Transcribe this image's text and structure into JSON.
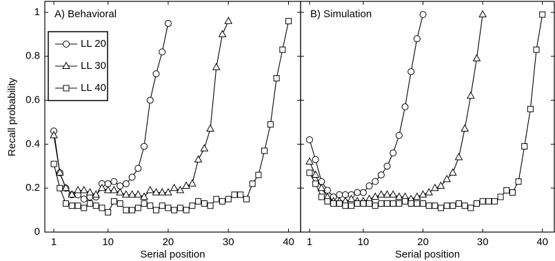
{
  "chart_data": [
    {
      "type": "line",
      "title": "A) Behavioral",
      "xlabel": "Serial position",
      "ylabel": "Recall probability",
      "xlim": [
        -0.5,
        42
      ],
      "ylim": [
        0,
        1.05
      ],
      "xticks": [
        1,
        10,
        20,
        30,
        40
      ],
      "yticks": [
        0,
        0.2,
        0.4,
        0.6,
        0.8,
        1
      ],
      "legend": "upper left",
      "color": "#000000",
      "series": [
        {
          "name": "LL 20",
          "marker": "circle",
          "x": [
            1,
            2,
            3,
            4,
            5,
            6,
            7,
            8,
            9,
            10,
            11,
            12,
            13,
            14,
            15,
            16,
            17,
            18,
            19,
            20
          ],
          "values": [
            0.46,
            0.27,
            0.2,
            0.17,
            0.17,
            0.15,
            0.16,
            0.16,
            0.22,
            0.22,
            0.23,
            0.21,
            0.22,
            0.25,
            0.29,
            0.39,
            0.6,
            0.72,
            0.82,
            0.95
          ]
        },
        {
          "name": "LL 30",
          "marker": "triangle",
          "x": [
            1,
            2,
            3,
            4,
            5,
            6,
            7,
            8,
            9,
            10,
            11,
            12,
            13,
            14,
            15,
            16,
            17,
            18,
            19,
            20,
            21,
            22,
            23,
            24,
            25,
            26,
            27,
            28,
            29,
            30
          ],
          "values": [
            0.44,
            0.27,
            0.2,
            0.17,
            0.19,
            0.19,
            0.18,
            0.17,
            0.2,
            0.19,
            0.19,
            0.18,
            0.17,
            0.17,
            0.17,
            0.16,
            0.19,
            0.18,
            0.18,
            0.18,
            0.2,
            0.19,
            0.21,
            0.22,
            0.33,
            0.38,
            0.47,
            0.75,
            0.9,
            0.96
          ]
        },
        {
          "name": "LL 40",
          "marker": "square",
          "x": [
            1,
            2,
            3,
            4,
            5,
            6,
            7,
            8,
            9,
            10,
            11,
            12,
            13,
            14,
            15,
            16,
            17,
            18,
            19,
            20,
            21,
            22,
            23,
            24,
            25,
            26,
            27,
            28,
            29,
            30,
            31,
            32,
            33,
            34,
            35,
            36,
            37,
            38,
            39,
            40
          ],
          "values": [
            0.31,
            0.2,
            0.13,
            0.12,
            0.12,
            0.11,
            0.13,
            0.12,
            0.11,
            0.09,
            0.14,
            0.13,
            0.1,
            0.1,
            0.11,
            0.13,
            0.12,
            0.1,
            0.12,
            0.11,
            0.1,
            0.11,
            0.1,
            0.12,
            0.14,
            0.13,
            0.12,
            0.15,
            0.14,
            0.15,
            0.17,
            0.17,
            0.15,
            0.22,
            0.26,
            0.37,
            0.49,
            0.7,
            0.83,
            0.96
          ]
        }
      ]
    },
    {
      "type": "line",
      "title": "B) Simulation",
      "xlabel": "Serial position",
      "xlim": [
        -0.5,
        42
      ],
      "ylim": [
        0,
        1.05
      ],
      "xticks": [
        1,
        10,
        20,
        30,
        40
      ],
      "yticks": [
        0,
        0.2,
        0.4,
        0.6,
        0.8,
        1
      ],
      "color": "#000000",
      "series": [
        {
          "marker": "circle",
          "x": [
            1,
            2,
            3,
            4,
            5,
            6,
            7,
            8,
            9,
            10,
            11,
            12,
            13,
            14,
            15,
            16,
            17,
            18,
            19,
            20
          ],
          "values": [
            0.42,
            0.33,
            0.23,
            0.19,
            0.16,
            0.17,
            0.17,
            0.17,
            0.18,
            0.18,
            0.21,
            0.23,
            0.26,
            0.3,
            0.36,
            0.44,
            0.57,
            0.73,
            0.88,
            0.99
          ]
        },
        {
          "marker": "triangle",
          "x": [
            1,
            2,
            3,
            4,
            5,
            6,
            7,
            8,
            9,
            10,
            11,
            12,
            13,
            14,
            15,
            16,
            17,
            18,
            19,
            20,
            21,
            22,
            23,
            24,
            25,
            26,
            27,
            28,
            29,
            30
          ],
          "values": [
            0.32,
            0.26,
            0.2,
            0.16,
            0.14,
            0.14,
            0.14,
            0.15,
            0.14,
            0.14,
            0.15,
            0.16,
            0.17,
            0.17,
            0.17,
            0.16,
            0.16,
            0.15,
            0.16,
            0.17,
            0.18,
            0.2,
            0.21,
            0.24,
            0.27,
            0.34,
            0.47,
            0.62,
            0.79,
            0.99
          ]
        },
        {
          "marker": "square",
          "x": [
            1,
            2,
            3,
            4,
            5,
            6,
            7,
            8,
            9,
            10,
            11,
            12,
            13,
            14,
            15,
            16,
            17,
            18,
            19,
            20,
            21,
            22,
            23,
            24,
            25,
            26,
            27,
            28,
            29,
            30,
            31,
            32,
            33,
            34,
            35,
            36,
            37,
            38,
            39,
            40
          ],
          "values": [
            0.27,
            0.22,
            0.16,
            0.14,
            0.13,
            0.13,
            0.12,
            0.12,
            0.13,
            0.13,
            0.13,
            0.12,
            0.13,
            0.13,
            0.13,
            0.13,
            0.14,
            0.13,
            0.13,
            0.13,
            0.12,
            0.12,
            0.11,
            0.12,
            0.12,
            0.13,
            0.12,
            0.11,
            0.13,
            0.14,
            0.14,
            0.14,
            0.16,
            0.19,
            0.18,
            0.23,
            0.39,
            0.56,
            0.83,
            0.99
          ]
        }
      ]
    }
  ]
}
